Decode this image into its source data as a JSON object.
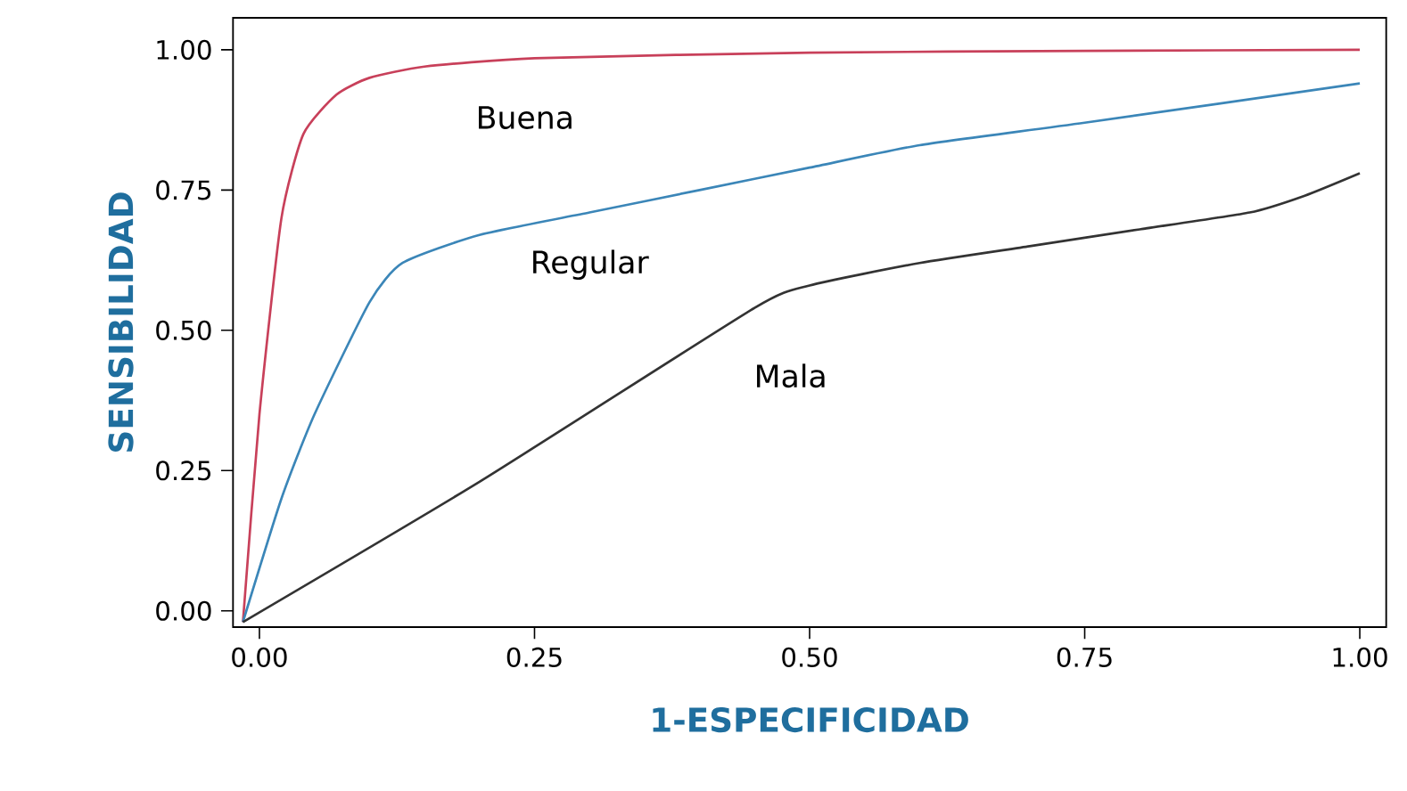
{
  "chart_data": {
    "type": "line",
    "xlabel": "1-ESPECIFICIDAD",
    "ylabel": "SENSIBILIDAD",
    "xlim": [
      -0.024,
      1.024
    ],
    "ylim": [
      -0.029,
      1.057
    ],
    "xticks": [
      {
        "value": 0,
        "label": "0.00"
      },
      {
        "value": 0.25,
        "label": "0.25"
      },
      {
        "value": 0.5,
        "label": "0.50"
      },
      {
        "value": 0.75,
        "label": "0.75"
      },
      {
        "value": 1,
        "label": "1.00"
      }
    ],
    "yticks": [
      {
        "value": 0,
        "label": "0.00"
      },
      {
        "value": 0.25,
        "label": "0.25"
      },
      {
        "value": 0.5,
        "label": "0.50"
      },
      {
        "value": 0.75,
        "label": "0.75"
      },
      {
        "value": 1,
        "label": "1.00"
      }
    ],
    "grid": false,
    "legend": false,
    "marker": "none",
    "line_style": "solid",
    "series": [
      {
        "name": "Buena",
        "color": "#c8405a",
        "x": [
          -0.015,
          0,
          0.02,
          0.04,
          0.07,
          0.1,
          0.15,
          0.25,
          0.5,
          0.75,
          1
        ],
        "values": [
          -0.02,
          0.35,
          0.7,
          0.85,
          0.92,
          0.95,
          0.97,
          0.985,
          0.995,
          0.998,
          1.0
        ]
      },
      {
        "name": "Regular",
        "color": "#3b86b8",
        "x": [
          -0.015,
          0.02,
          0.05,
          0.1,
          0.13,
          0.2,
          0.3,
          0.4,
          0.5,
          0.6,
          0.75,
          1
        ],
        "values": [
          -0.02,
          0.2,
          0.35,
          0.55,
          0.62,
          0.67,
          0.71,
          0.75,
          0.79,
          0.83,
          0.87,
          0.94
        ]
      },
      {
        "name": "Mala",
        "color": "#333333",
        "x": [
          -0.015,
          0.2,
          0.45,
          0.5,
          0.6,
          0.7,
          0.8,
          0.9,
          0.95,
          1
        ],
        "values": [
          -0.02,
          0.23,
          0.54,
          0.58,
          0.62,
          0.65,
          0.68,
          0.71,
          0.74,
          0.78
        ]
      }
    ]
  }
}
